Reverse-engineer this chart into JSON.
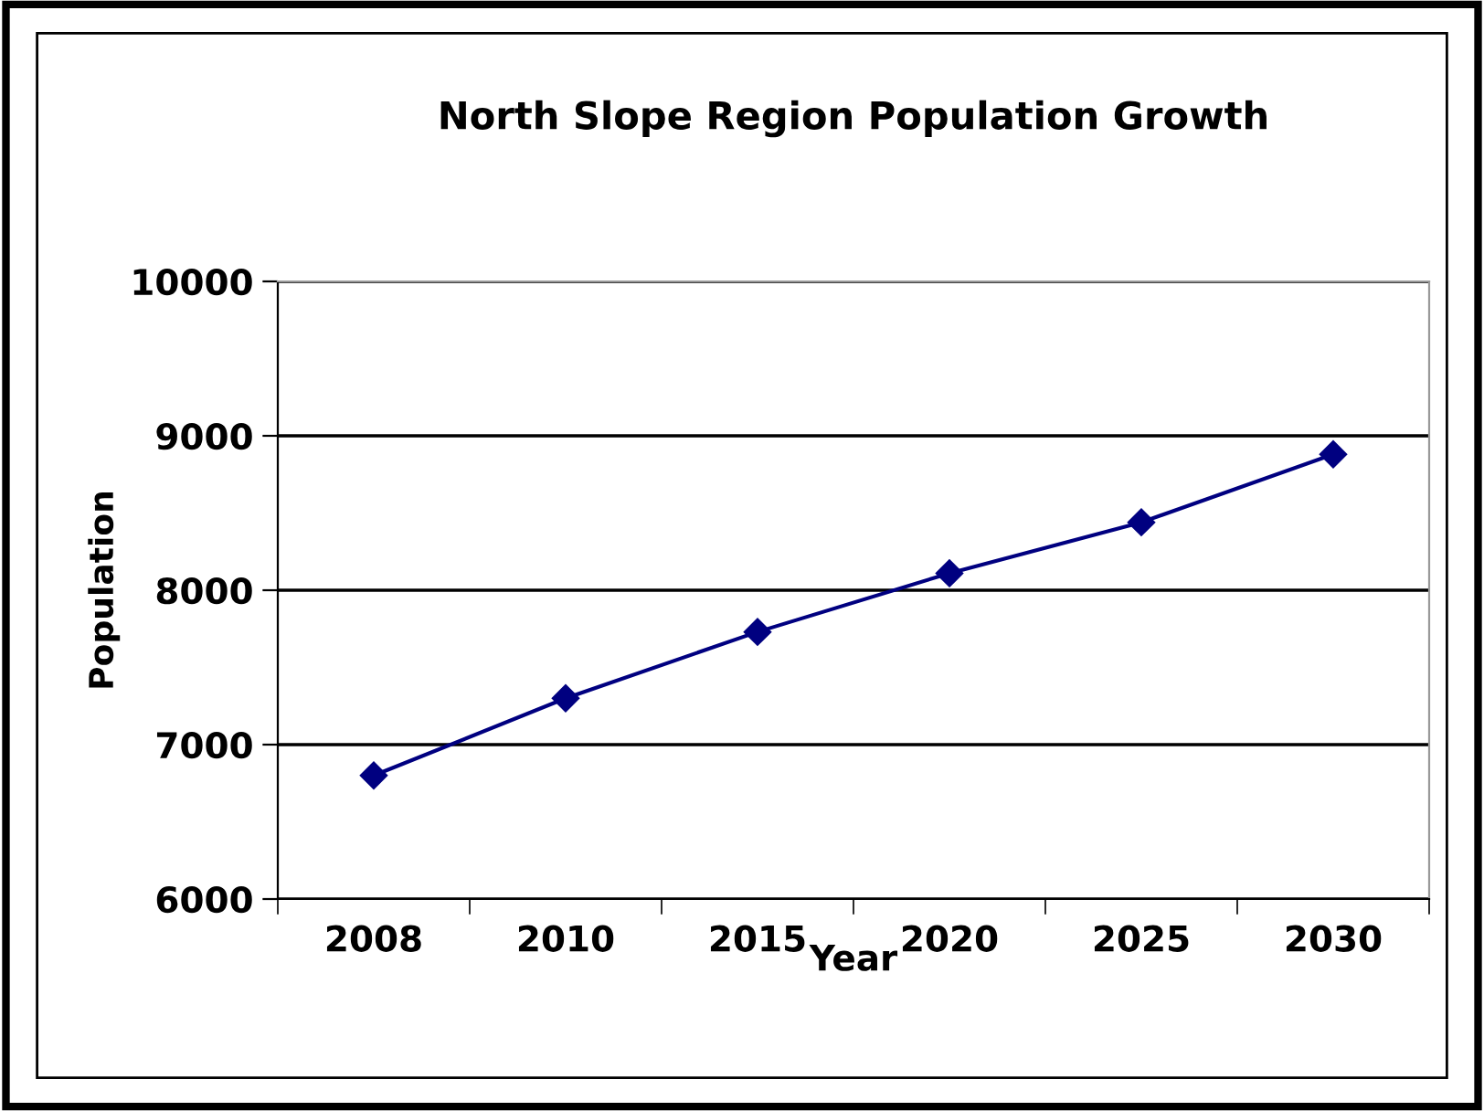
{
  "chart_data": {
    "type": "line",
    "title": "North Slope Region Population Growth",
    "xlabel": "Year",
    "ylabel": "Population",
    "categories": [
      "2008",
      "2010",
      "2015",
      "2020",
      "2025",
      "2030"
    ],
    "series": [
      {
        "color": "#000080",
        "values": [
          6800,
          7300,
          7730,
          8110,
          8440,
          8880
        ]
      }
    ],
    "ylim": [
      6000,
      10000
    ],
    "yticks": [
      6000,
      7000,
      8000,
      9000,
      10000
    ],
    "grid": "y",
    "marker": "diamond",
    "line_style": "solid",
    "legend": false
  }
}
